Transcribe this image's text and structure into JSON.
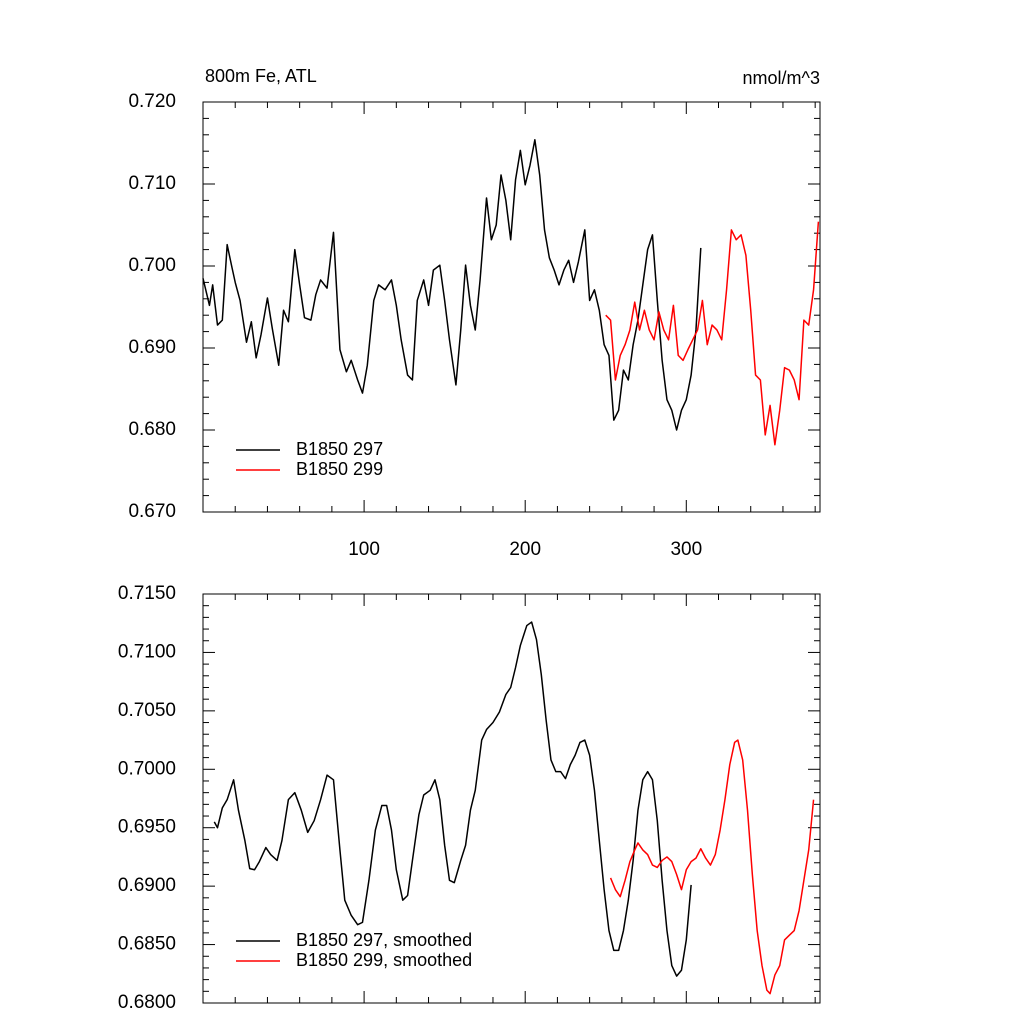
{
  "chart_data": [
    {
      "type": "line",
      "title": "800m Fe, ATL",
      "units_label": "nmol/m^3",
      "xlim": [
        0,
        383
      ],
      "xticks": [
        100,
        200,
        300
      ],
      "xtick_labels": true,
      "ylim": [
        0.67,
        0.72
      ],
      "yticks": [
        {
          "value": 0.67,
          "label": "0.670"
        },
        {
          "value": 0.68,
          "label": "0.680"
        },
        {
          "value": 0.69,
          "label": "0.690"
        },
        {
          "value": 0.7,
          "label": "0.700"
        },
        {
          "value": 0.71,
          "label": "0.710"
        },
        {
          "value": 0.72,
          "label": "0.720"
        }
      ],
      "minor_divisions": 5,
      "legend": "lower left",
      "series": [
        {
          "name": "B1850 297",
          "color": "#000000",
          "x": [
            0,
            4,
            6,
            9,
            12,
            15,
            18,
            20,
            23,
            27,
            30,
            33,
            36,
            40,
            43,
            47,
            50,
            53,
            57,
            60,
            63,
            67,
            70,
            73,
            77,
            81,
            85,
            89,
            92,
            96,
            99,
            102,
            106,
            109,
            113,
            117,
            120,
            123,
            127,
            130,
            133,
            137,
            140,
            143,
            147,
            150,
            153,
            157,
            160,
            163,
            166,
            169,
            172,
            176,
            179,
            182,
            185,
            188,
            191,
            194,
            197,
            200,
            203,
            206,
            209,
            212,
            215,
            218,
            221,
            224,
            227,
            230,
            233,
            237,
            240,
            243,
            246,
            249,
            252,
            255,
            258,
            261,
            264,
            267,
            270,
            273,
            276,
            279,
            282,
            285,
            288,
            291,
            294,
            297,
            300,
            303,
            306,
            309
          ],
          "values": [
            0.6985,
            0.6952,
            0.6977,
            0.6928,
            0.6934,
            0.7026,
            0.6998,
            0.698,
            0.6958,
            0.6907,
            0.6932,
            0.6888,
            0.6916,
            0.6961,
            0.6924,
            0.6879,
            0.6946,
            0.6932,
            0.702,
            0.6977,
            0.6937,
            0.6934,
            0.6965,
            0.6983,
            0.6973,
            0.7041,
            0.6898,
            0.6871,
            0.6885,
            0.6861,
            0.6845,
            0.6879,
            0.6958,
            0.6977,
            0.6971,
            0.6983,
            0.6952,
            0.691,
            0.6867,
            0.6861,
            0.6958,
            0.6983,
            0.6952,
            0.6995,
            0.7001,
            0.6958,
            0.691,
            0.6855,
            0.6922,
            0.7001,
            0.6952,
            0.6922,
            0.6983,
            0.7083,
            0.7032,
            0.705,
            0.7111,
            0.708,
            0.7032,
            0.7105,
            0.7141,
            0.7099,
            0.7123,
            0.7154,
            0.7111,
            0.7044,
            0.701,
            0.6995,
            0.6977,
            0.6995,
            0.7007,
            0.698,
            0.7005,
            0.7044,
            0.6958,
            0.6971,
            0.6946,
            0.6904,
            0.6891,
            0.6812,
            0.6824,
            0.6873,
            0.6861,
            0.6904,
            0.6934,
            0.6977,
            0.702,
            0.7038,
            0.6958,
            0.6885,
            0.6837,
            0.6824,
            0.68,
            0.6824,
            0.6837,
            0.6867,
            0.6922,
            0.7022
          ]
        },
        {
          "name": "B1850 299",
          "color": "#ff0000",
          "x": [
            250,
            253,
            256,
            259,
            262,
            265,
            268,
            271,
            274,
            277,
            280,
            283,
            286,
            289,
            292,
            295,
            298,
            301,
            304,
            307,
            310,
            313,
            316,
            319,
            322,
            325,
            328,
            331,
            334,
            337,
            340,
            343,
            346,
            349,
            352,
            355,
            358,
            361,
            364,
            367,
            370,
            373,
            376,
            379,
            382
          ],
          "values": [
            0.694,
            0.6934,
            0.6861,
            0.6891,
            0.6904,
            0.6922,
            0.6956,
            0.6922,
            0.6946,
            0.6922,
            0.691,
            0.6944,
            0.6922,
            0.691,
            0.6952,
            0.6891,
            0.6885,
            0.6898,
            0.691,
            0.6922,
            0.6958,
            0.6904,
            0.6928,
            0.6922,
            0.691,
            0.6971,
            0.7044,
            0.7032,
            0.7038,
            0.7013,
            0.6946,
            0.6867,
            0.6861,
            0.6794,
            0.683,
            0.6782,
            0.6824,
            0.6876,
            0.6873,
            0.6861,
            0.6837,
            0.6934,
            0.6928,
            0.6971,
            0.7054
          ]
        }
      ]
    },
    {
      "type": "line",
      "xlim": [
        0,
        383
      ],
      "xticks": [
        100,
        200,
        300
      ],
      "xtick_labels": false,
      "ylim": [
        0.68,
        0.715
      ],
      "yticks": [
        {
          "value": 0.68,
          "label": "0.6800"
        },
        {
          "value": 0.685,
          "label": "0.6850"
        },
        {
          "value": 0.69,
          "label": "0.6900"
        },
        {
          "value": 0.695,
          "label": "0.6950"
        },
        {
          "value": 0.7,
          "label": "0.7000"
        },
        {
          "value": 0.705,
          "label": "0.7050"
        },
        {
          "value": 0.71,
          "label": "0.7100"
        },
        {
          "value": 0.715,
          "label": "0.7150"
        }
      ],
      "minor_divisions": 5,
      "legend": "lower left",
      "series": [
        {
          "name": "B1850 297, smoothed",
          "color": "#000000",
          "x": [
            7,
            9,
            12,
            15,
            19,
            22,
            26,
            29,
            32,
            35,
            39,
            42,
            46,
            49,
            53,
            57,
            61,
            65,
            69,
            73,
            77,
            81,
            85,
            88,
            92,
            96,
            99,
            103,
            107,
            111,
            114,
            117,
            120,
            124,
            127,
            130,
            134,
            137,
            141,
            144,
            147,
            150,
            153,
            156,
            160,
            163,
            166,
            169,
            173,
            176,
            180,
            184,
            188,
            191,
            194,
            197,
            201,
            204,
            207,
            210,
            213,
            216,
            219,
            222,
            225,
            228,
            231,
            234,
            237,
            240,
            243,
            246,
            249,
            252,
            255,
            258,
            261,
            264,
            267,
            270,
            273,
            276,
            279,
            282,
            285,
            288,
            291,
            294,
            297,
            300,
            303
          ],
          "values": [
            0.6955,
            0.695,
            0.6967,
            0.6974,
            0.6991,
            0.6965,
            0.6939,
            0.6915,
            0.6914,
            0.6921,
            0.6933,
            0.6927,
            0.6922,
            0.6939,
            0.6974,
            0.698,
            0.6965,
            0.6946,
            0.6956,
            0.6974,
            0.6995,
            0.6991,
            0.6931,
            0.6888,
            0.6875,
            0.6867,
            0.6869,
            0.6905,
            0.6948,
            0.6969,
            0.6969,
            0.6948,
            0.6914,
            0.6888,
            0.6892,
            0.6922,
            0.6961,
            0.6978,
            0.6982,
            0.6991,
            0.6974,
            0.6935,
            0.6905,
            0.6903,
            0.6922,
            0.6935,
            0.6965,
            0.6982,
            0.7025,
            0.7034,
            0.704,
            0.7049,
            0.7064,
            0.707,
            0.7087,
            0.7106,
            0.7123,
            0.7126,
            0.7111,
            0.7081,
            0.7042,
            0.7008,
            0.6998,
            0.6998,
            0.6992,
            0.7004,
            0.7012,
            0.7023,
            0.7025,
            0.7012,
            0.6982,
            0.6939,
            0.6897,
            0.6862,
            0.6845,
            0.6845,
            0.6862,
            0.6888,
            0.6922,
            0.6965,
            0.6991,
            0.6998,
            0.6991,
            0.6956,
            0.6905,
            0.6862,
            0.6832,
            0.6823,
            0.6828,
            0.6854,
            0.6901
          ]
        },
        {
          "name": "B1850 299, smoothed",
          "color": "#ff0000",
          "x": [
            253,
            256,
            259,
            262,
            265,
            268,
            270,
            273,
            276,
            279,
            282,
            285,
            288,
            291,
            294,
            297,
            300,
            303,
            306,
            309,
            312,
            315,
            318,
            321,
            324,
            327,
            330,
            332,
            335,
            338,
            341,
            344,
            347,
            350,
            352,
            355,
            358,
            361,
            364,
            367,
            370,
            373,
            376,
            379
          ],
          "values": [
            0.6907,
            0.6897,
            0.6891,
            0.6905,
            0.6921,
            0.6931,
            0.6937,
            0.6931,
            0.6927,
            0.6918,
            0.6916,
            0.6922,
            0.6925,
            0.6921,
            0.691,
            0.6897,
            0.6914,
            0.6921,
            0.6924,
            0.6932,
            0.6924,
            0.6918,
            0.6927,
            0.6948,
            0.6974,
            0.7004,
            0.7023,
            0.7025,
            0.7008,
            0.6965,
            0.691,
            0.6862,
            0.6832,
            0.6811,
            0.6808,
            0.6824,
            0.6832,
            0.6854,
            0.6858,
            0.6862,
            0.6879,
            0.6905,
            0.6931,
            0.6974
          ]
        }
      ]
    }
  ]
}
